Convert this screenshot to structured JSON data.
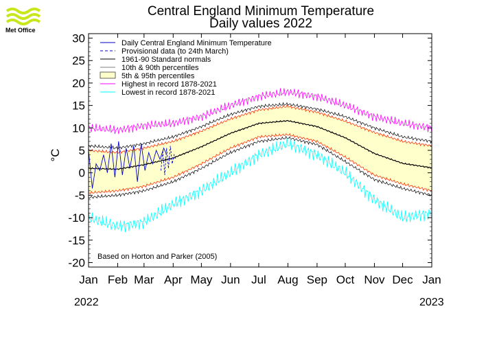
{
  "brand": {
    "logo_text": "Met Office",
    "logo_color": "#c8e619"
  },
  "title": "Central England Minimum Temperature",
  "subtitle": "Daily values 2022",
  "year_start": "2022",
  "year_end": "2023",
  "footnote": "Based on Horton and Parker (2005)",
  "chart_data": {
    "type": "line",
    "title": "Central England Minimum Temperature",
    "subtitle": "Daily values 2022",
    "xlabel": "",
    "ylabel": "°C",
    "xlim": [
      0,
      365
    ],
    "ylim": [
      -21,
      31
    ],
    "yticks": [
      30,
      25,
      20,
      15,
      10,
      5,
      0,
      -5,
      -10,
      -15,
      -20
    ],
    "xticks": [
      {
        "label": "Jan",
        "day": 0
      },
      {
        "label": "Feb",
        "day": 31
      },
      {
        "label": "Mar",
        "day": 59
      },
      {
        "label": "Apr",
        "day": 90
      },
      {
        "label": "May",
        "day": 120
      },
      {
        "label": "Jun",
        "day": 151
      },
      {
        "label": "Jul",
        "day": 181
      },
      {
        "label": "Aug",
        "day": 212
      },
      {
        "label": "Sep",
        "day": 243
      },
      {
        "label": "Oct",
        "day": 273
      },
      {
        "label": "Nov",
        "day": 304
      },
      {
        "label": "Dec",
        "day": 334
      },
      {
        "label": "Jan",
        "day": 365
      }
    ],
    "legend_position": "top-left",
    "legend": [
      {
        "label": "Daily Central England Minimum Temperature",
        "color": "#0000cc",
        "style": "solid"
      },
      {
        "label": "Provisional data (to 24th March)",
        "color": "#0000cc",
        "style": "dashed"
      },
      {
        "label": "1961-90 Standard normals",
        "color": "#000000",
        "style": "solid"
      },
      {
        "label": "10th & 90th percentiles",
        "color": "#000000",
        "style": "thin"
      },
      {
        "label": "5th & 95th percentiles",
        "color": "#ffffcc",
        "style": "fill"
      },
      {
        "label": "Highest in record 1878-2021",
        "color": "#ff00ff",
        "style": "solid"
      },
      {
        "label": "Lowest in record 1878-2021",
        "color": "#00ffff",
        "style": "solid"
      }
    ],
    "series": [
      {
        "name": "1961-90 Standard normals",
        "color": "#000000",
        "x": [
          0,
          31,
          59,
          90,
          120,
          151,
          181,
          212,
          243,
          273,
          304,
          334,
          365
        ],
        "values": [
          1.0,
          0.8,
          1.8,
          3.3,
          5.8,
          8.8,
          11.0,
          11.6,
          10.3,
          7.8,
          4.3,
          2.1,
          1.1
        ]
      },
      {
        "name": "95th percentile",
        "color": "#ff3300",
        "x": [
          0,
          31,
          59,
          90,
          120,
          151,
          181,
          212,
          243,
          273,
          304,
          334,
          365
        ],
        "values": [
          5.0,
          4.5,
          5.5,
          7.0,
          9.3,
          12.0,
          14.0,
          14.8,
          13.5,
          11.5,
          9.0,
          7.0,
          6.0
        ]
      },
      {
        "name": "5th percentile",
        "color": "#ff3300",
        "x": [
          0,
          31,
          59,
          90,
          120,
          151,
          181,
          212,
          243,
          273,
          304,
          334,
          365
        ],
        "values": [
          -4.5,
          -4.0,
          -3.0,
          -1.0,
          2.0,
          5.5,
          8.0,
          8.5,
          7.0,
          3.5,
          -0.5,
          -2.5,
          -4.0
        ]
      },
      {
        "name": "90th percentile",
        "color": "#000000",
        "x": [
          0,
          31,
          59,
          90,
          120,
          151,
          181,
          212,
          243,
          273,
          304,
          334,
          365
        ],
        "values": [
          6.0,
          5.5,
          6.5,
          8.0,
          10.3,
          13.0,
          14.8,
          15.3,
          14.2,
          12.5,
          10.0,
          8.0,
          7.0
        ]
      },
      {
        "name": "10th percentile",
        "color": "#000000",
        "x": [
          0,
          31,
          59,
          90,
          120,
          151,
          181,
          212,
          243,
          273,
          304,
          334,
          365
        ],
        "values": [
          -5.5,
          -5.0,
          -4.0,
          -2.0,
          1.0,
          4.5,
          7.0,
          7.8,
          6.3,
          2.5,
          -1.5,
          -3.5,
          -5.0
        ]
      },
      {
        "name": "Highest in record 1878-2021",
        "color": "#ff00ff",
        "x": [
          0,
          31,
          59,
          90,
          120,
          151,
          181,
          212,
          243,
          273,
          304,
          334,
          365
        ],
        "values": [
          10.0,
          9.5,
          10.5,
          11.0,
          12.5,
          15.0,
          17.0,
          18.0,
          17.0,
          15.0,
          12.5,
          11.0,
          10.0
        ]
      },
      {
        "name": "Lowest in record 1878-2021",
        "color": "#00ffff",
        "x": [
          0,
          31,
          59,
          90,
          120,
          151,
          181,
          212,
          243,
          273,
          304,
          334,
          365
        ],
        "values": [
          -10.0,
          -12.0,
          -11.0,
          -7.0,
          -4.0,
          0.0,
          4.0,
          6.5,
          4.0,
          0.0,
          -6.0,
          -10.0,
          -9.0
        ]
      },
      {
        "name": "Daily Central England Minimum Temperature",
        "color": "#0000cc",
        "x": [
          0,
          4,
          8,
          12,
          16,
          20,
          24,
          28,
          32,
          36,
          40,
          44,
          48,
          52,
          56,
          60,
          64,
          68,
          72,
          76,
          80,
          83
        ],
        "values": [
          5.0,
          -3.5,
          2.0,
          0.5,
          4.0,
          0.0,
          6.5,
          -1.0,
          7.0,
          -0.5,
          5.5,
          1.0,
          6.0,
          -2.0,
          6.5,
          0.5,
          4.5,
          2.0,
          5.0,
          3.0,
          5.5,
          4.0
        ]
      },
      {
        "name": "Provisional data (to 24th March)",
        "color": "#0000cc",
        "style": "dashed",
        "x": [
          77,
          79,
          81,
          83,
          85,
          87,
          89,
          91,
          93
        ],
        "values": [
          0.5,
          5.0,
          -0.5,
          5.5,
          1.0,
          6.0,
          2.0,
          4.0,
          3.0
        ]
      }
    ]
  }
}
